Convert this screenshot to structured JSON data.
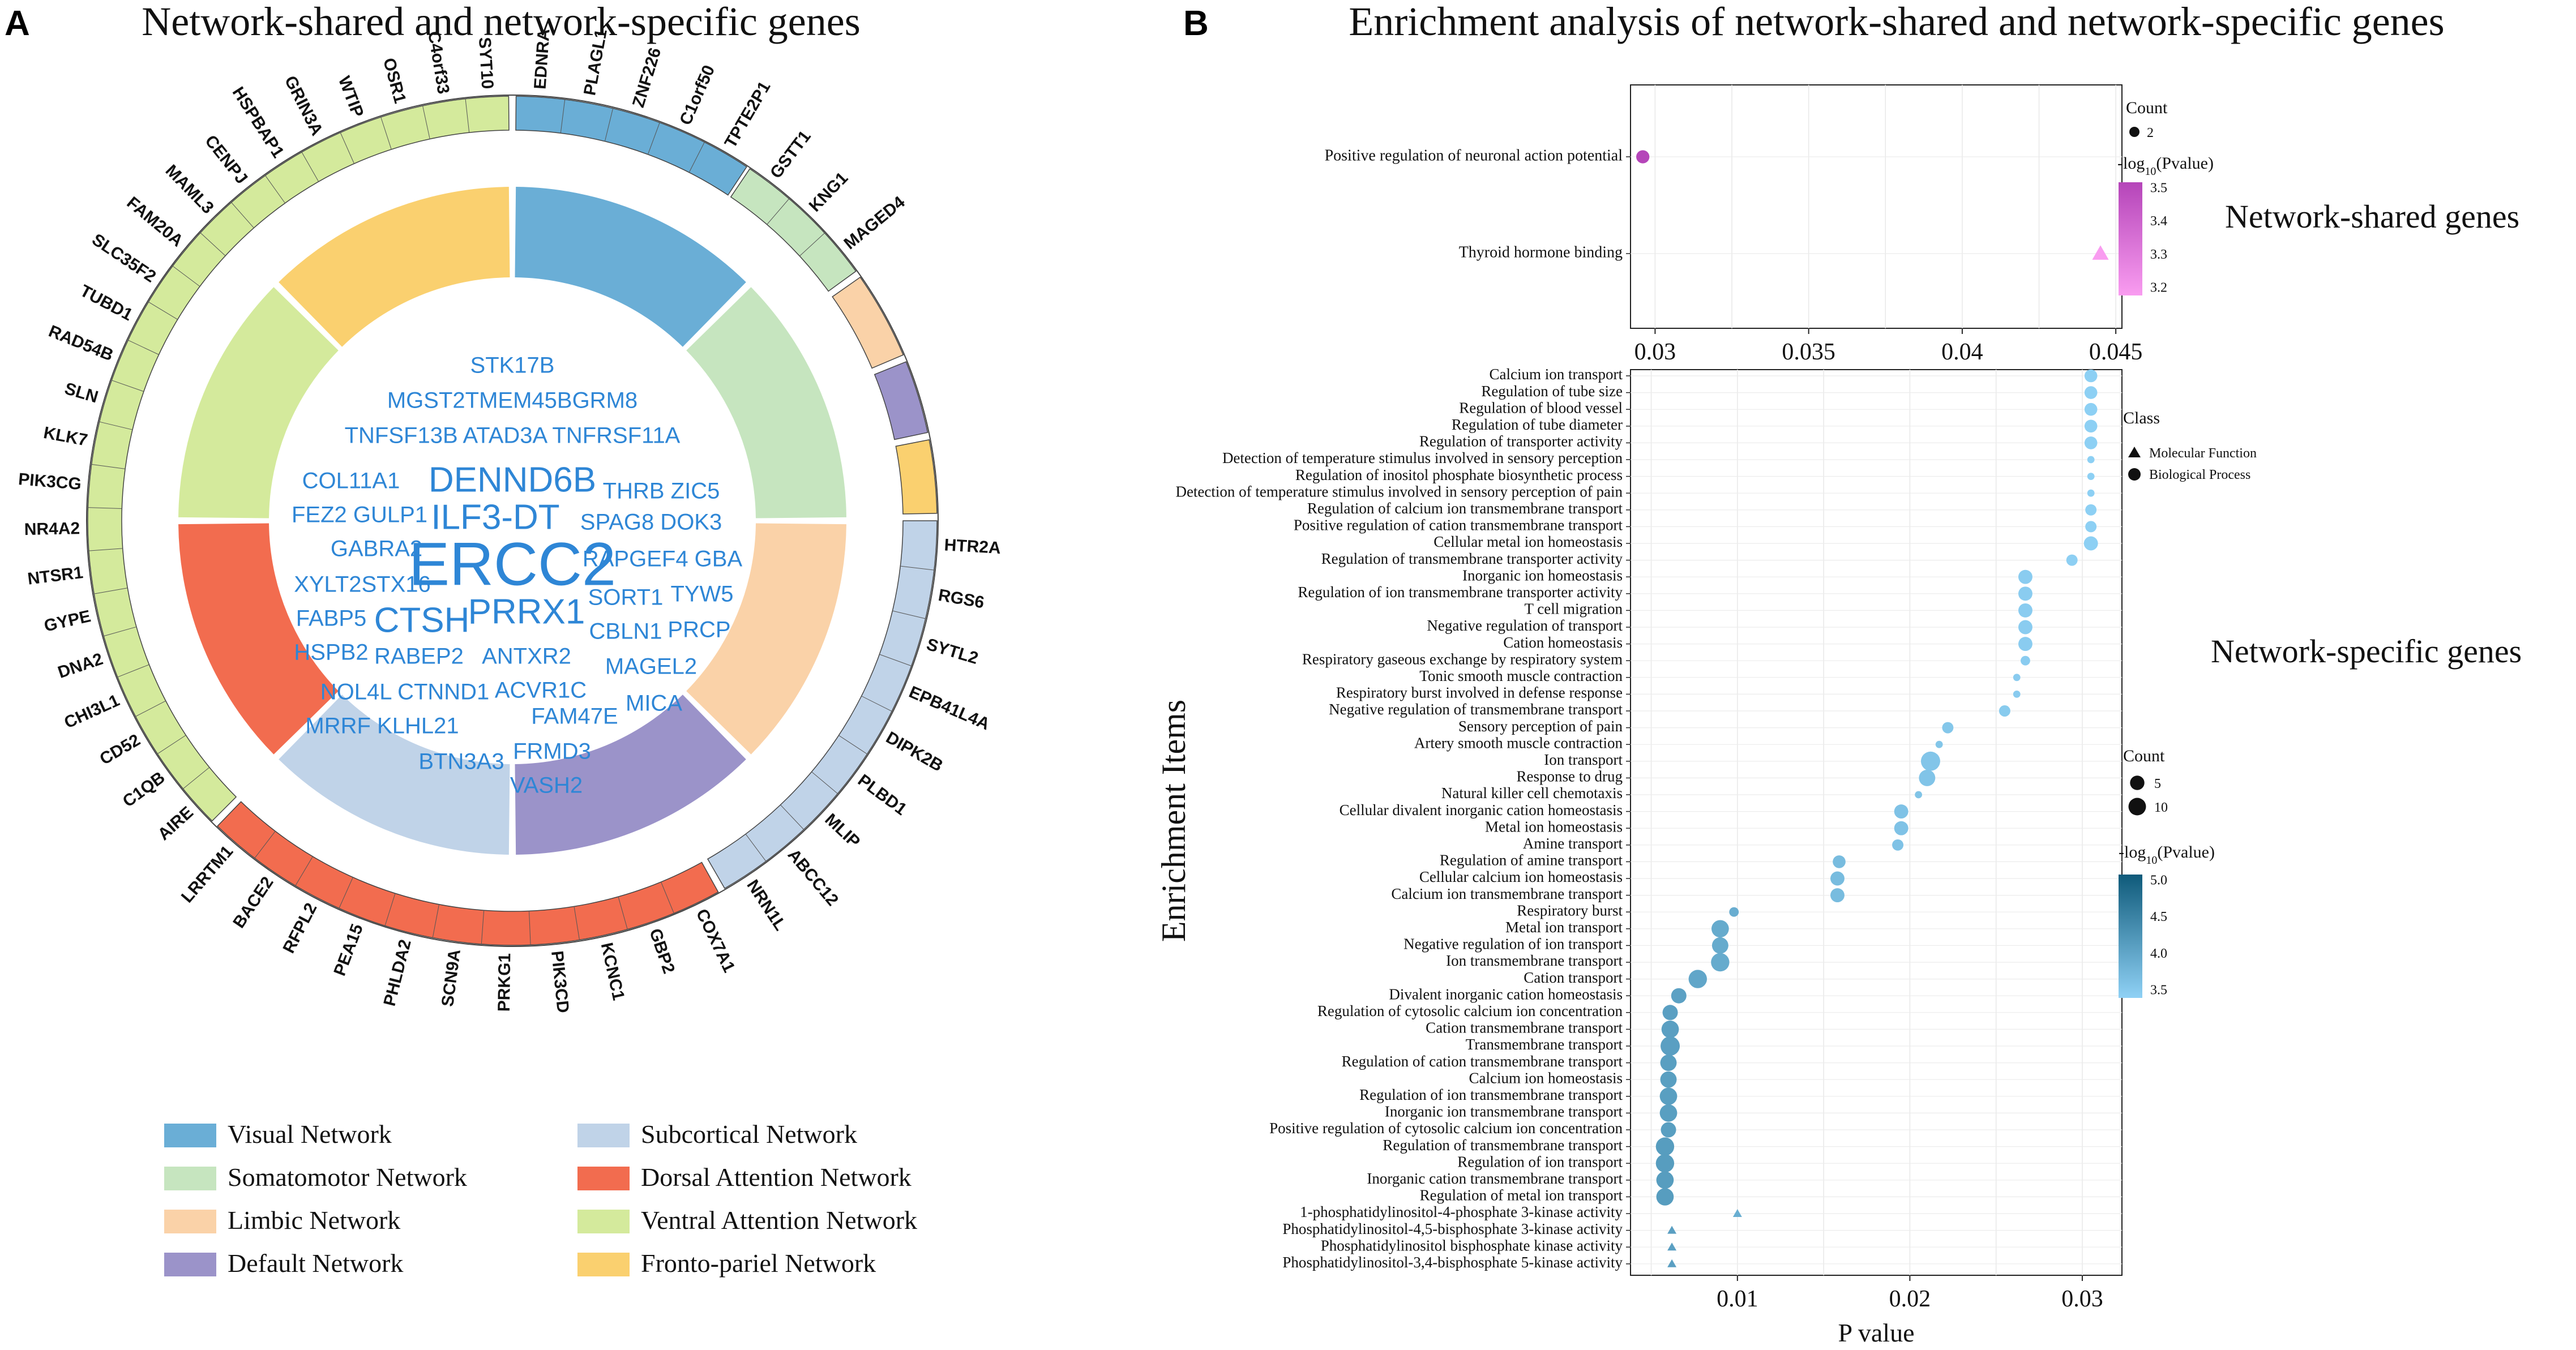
{
  "panel_a": {
    "letter": "A",
    "title": "Network-shared and network-specific genes",
    "segments": [
      {
        "network": "Visual Network",
        "color": "#6aaed6",
        "genes": [
          "EDNRA",
          "PLAGL1",
          "ZNF226",
          "C1orf50",
          "TPTE2P1"
        ]
      },
      {
        "network": "Somatomotor Network",
        "color": "#c6e5bf",
        "genes": [
          "GSTT1",
          "KNG1",
          "MAGED4"
        ]
      },
      {
        "network": "Limbic Network",
        "color": "#fad2a8",
        "genes": []
      },
      {
        "network": "Default Network",
        "color": "#9b93c9",
        "genes": []
      },
      {
        "network": "Fronto-pariel Network",
        "color": "#fad06f",
        "genes": []
      },
      {
        "network": "Subcortical Network",
        "color": "#c0d3e8",
        "genes": [
          "HTR2A",
          "RGS6",
          "SYTL2",
          "EPB41L4A",
          "DIPK2B",
          "PLBD1",
          "MLIP",
          "ABCC12",
          "NRN1L"
        ]
      },
      {
        "network": "Dorsal Attention Network",
        "color": "#f26c4f",
        "genes": [
          "COX7A1",
          "GBP2",
          "KCNC1",
          "PIK3CD",
          "PRKG1",
          "SCN9A",
          "PHLDA2",
          "PEA15",
          "RFPL2",
          "BACE2",
          "LRRTM1"
        ]
      },
      {
        "network": "Ventral Attention Network",
        "color": "#d4ea9c",
        "genes": [
          "AIRE",
          "C1QB",
          "CD52",
          "CHI3L1",
          "DNA2",
          "GYPE",
          "NTSR1",
          "NR4A2",
          "PIK3CG",
          "KLK7",
          "SLN",
          "RAD54B",
          "TUBD1",
          "SLC35F2",
          "FAM20A",
          "MAML3",
          "CENPJ",
          "HSPBAP1",
          "GRIN3A",
          "WTIP",
          "OSR1",
          "C4orf33",
          "SYT10"
        ]
      }
    ],
    "inner_ring": [
      {
        "network": "Visual Network",
        "color": "#6aaed6"
      },
      {
        "network": "Somatomotor Network",
        "color": "#c6e5bf"
      },
      {
        "network": "Limbic Network",
        "color": "#fad2a8"
      },
      {
        "network": "Default Network",
        "color": "#9b93c9"
      },
      {
        "network": "Subcortical Network",
        "color": "#c0d3e8"
      },
      {
        "network": "Dorsal Attention Network",
        "color": "#f26c4f"
      },
      {
        "network": "Ventral Attention Network",
        "color": "#d4ea9c"
      },
      {
        "network": "Fronto-pariel Network",
        "color": "#fad06f"
      }
    ],
    "word_cloud": [
      {
        "text": "STK17B",
        "size": 3
      },
      {
        "text": "MGST2TMEM45BGRM8",
        "size": 3
      },
      {
        "text": "TNFSF13B ATAD3A TNFRSF11A",
        "size": 3
      },
      {
        "text": "COL11A1",
        "size": 3
      },
      {
        "text": "DENND6B",
        "size": 5
      },
      {
        "text": "THRB ZIC5",
        "size": 3
      },
      {
        "text": "FEZ2 GULP1",
        "size": 3
      },
      {
        "text": "ILF3-DT",
        "size": 5
      },
      {
        "text": "SPAG8 DOK3",
        "size": 3
      },
      {
        "text": "GABRA2",
        "size": 3
      },
      {
        "text": "ERCC2",
        "size": 8
      },
      {
        "text": "RAPGEF4 GBA",
        "size": 3
      },
      {
        "text": "XYLT2STX16",
        "size": 3
      },
      {
        "text": "SORT1",
        "size": 3
      },
      {
        "text": "TYW5",
        "size": 3
      },
      {
        "text": "FABP5",
        "size": 3
      },
      {
        "text": "CTSH",
        "size": 5
      },
      {
        "text": "PRRX1",
        "size": 5
      },
      {
        "text": "CBLN1",
        "size": 3
      },
      {
        "text": "PRCP",
        "size": 3
      },
      {
        "text": "HSPB2",
        "size": 3
      },
      {
        "text": "RABEP2",
        "size": 3
      },
      {
        "text": "ANTXR2",
        "size": 3
      },
      {
        "text": "MAGEL2",
        "size": 3
      },
      {
        "text": "NOL4L CTNND1",
        "size": 3
      },
      {
        "text": "ACVR1C",
        "size": 3
      },
      {
        "text": "MICA",
        "size": 3
      },
      {
        "text": "FAM47E",
        "size": 3
      },
      {
        "text": "MRRF KLHL21",
        "size": 3
      },
      {
        "text": "FRMD3",
        "size": 3
      },
      {
        "text": "BTN3A3",
        "size": 3
      },
      {
        "text": "VASH2",
        "size": 3
      }
    ],
    "legend": [
      {
        "label": "Visual Network",
        "color": "#6aaed6"
      },
      {
        "label": "Subcortical Network",
        "color": "#c0d3e8"
      },
      {
        "label": "Somatomotor Network",
        "color": "#c6e5bf"
      },
      {
        "label": "Dorsal Attention Network",
        "color": "#f26c4f"
      },
      {
        "label": "Limbic Network",
        "color": "#fad2a8"
      },
      {
        "label": "Ventral Attention Network",
        "color": "#d4ea9c"
      },
      {
        "label": "Default Network",
        "color": "#9b93c9"
      },
      {
        "label": "Fronto-pariel Network",
        "color": "#fad06f"
      }
    ]
  },
  "panel_b": {
    "letter": "B",
    "title": "Enrichment analysis of network-shared and network-specific genes",
    "shared_label": "Network-shared genes",
    "specific_label": "Network-specific genes"
  },
  "chart_data": [
    {
      "type": "scatter",
      "title": "Network-shared genes",
      "xlabel": "",
      "ylabel": "",
      "xlim": [
        0.0292,
        0.0452
      ],
      "xticks": [
        0.03,
        0.035,
        0.04,
        0.045
      ],
      "xtick_labels": [
        "0.03",
        "0.035",
        "0.04",
        "0.045"
      ],
      "items": [
        {
          "term": "Positive regulation of neuronal action potential",
          "p": 0.0296,
          "count": 2,
          "log10p": 3.53,
          "class": "Biological Process"
        },
        {
          "term": "Thyroid hormone binding",
          "p": 0.0445,
          "count": 2,
          "log10p": 3.15,
          "class": "Molecular Function"
        }
      ],
      "legend": {
        "count_title": "Count",
        "count_values": [
          2
        ],
        "color_title": "-log10(Pvalue)",
        "color_ticks": [
          "3.5",
          "3.4",
          "3.3",
          "3.2"
        ],
        "color_low": "#f99cf0",
        "color_high": "#b545b9"
      }
    },
    {
      "type": "scatter",
      "title": "Network-specific genes",
      "xlabel": "P value",
      "ylabel": "Enrichment Items",
      "xlim": [
        0.0038,
        0.0323
      ],
      "xticks": [
        0.01,
        0.02,
        0.03
      ],
      "xtick_labels": [
        "0.01",
        "0.02",
        "0.03"
      ],
      "items": [
        {
          "term": "Calcium ion transport",
          "p": 0.0305,
          "count": 4,
          "log10p": 3.52,
          "class": "Biological Process"
        },
        {
          "term": "Regulation of tube size",
          "p": 0.0305,
          "count": 4,
          "log10p": 3.52,
          "class": "Biological Process"
        },
        {
          "term": "Regulation of blood vessel",
          "p": 0.0305,
          "count": 4,
          "log10p": 3.52,
          "class": "Biological Process"
        },
        {
          "term": "Regulation of tube diameter",
          "p": 0.0305,
          "count": 4,
          "log10p": 3.52,
          "class": "Biological Process"
        },
        {
          "term": "Regulation of transporter activity",
          "p": 0.0305,
          "count": 4,
          "log10p": 3.52,
          "class": "Biological Process"
        },
        {
          "term": "Detection of temperature stimulus involved in sensory perception",
          "p": 0.0305,
          "count": 1,
          "log10p": 3.52,
          "class": "Biological Process"
        },
        {
          "term": "Regulation of inositol phosphate biosynthetic process",
          "p": 0.0305,
          "count": 1,
          "log10p": 3.52,
          "class": "Biological Process"
        },
        {
          "term": "Detection of temperature stimulus involved in sensory perception of pain",
          "p": 0.0305,
          "count": 1,
          "log10p": 3.52,
          "class": "Biological Process"
        },
        {
          "term": "Regulation of calcium ion transmembrane transport",
          "p": 0.0305,
          "count": 3,
          "log10p": 3.52,
          "class": "Biological Process"
        },
        {
          "term": "Positive regulation of cation transmembrane transport",
          "p": 0.0305,
          "count": 3,
          "log10p": 3.52,
          "class": "Biological Process"
        },
        {
          "term": "Cellular metal ion homeostasis",
          "p": 0.0305,
          "count": 5,
          "log10p": 3.52,
          "class": "Biological Process"
        },
        {
          "term": "Regulation of transmembrane transporter activity",
          "p": 0.0294,
          "count": 3,
          "log10p": 3.53,
          "class": "Biological Process"
        },
        {
          "term": "Inorganic ion homeostasis",
          "p": 0.0267,
          "count": 5,
          "log10p": 3.57,
          "class": "Biological Process"
        },
        {
          "term": "Regulation of ion transmembrane transporter activity",
          "p": 0.0267,
          "count": 5,
          "log10p": 3.57,
          "class": "Biological Process"
        },
        {
          "term": "T cell migration",
          "p": 0.0267,
          "count": 5,
          "log10p": 3.57,
          "class": "Biological Process"
        },
        {
          "term": "Negative regulation of transport",
          "p": 0.0267,
          "count": 5,
          "log10p": 3.57,
          "class": "Biological Process"
        },
        {
          "term": "Cation homeostasis",
          "p": 0.0267,
          "count": 5,
          "log10p": 3.57,
          "class": "Biological Process"
        },
        {
          "term": "Respiratory gaseous exchange by respiratory system",
          "p": 0.0267,
          "count": 2,
          "log10p": 3.57,
          "class": "Biological Process"
        },
        {
          "term": "Tonic smooth muscle contraction",
          "p": 0.0262,
          "count": 1,
          "log10p": 3.58,
          "class": "Biological Process"
        },
        {
          "term": "Respiratory burst involved in defense response",
          "p": 0.0262,
          "count": 1,
          "log10p": 3.58,
          "class": "Biological Process"
        },
        {
          "term": "Negative regulation of transmembrane transport",
          "p": 0.0255,
          "count": 3,
          "log10p": 3.59,
          "class": "Biological Process"
        },
        {
          "term": "Sensory perception of pain",
          "p": 0.0222,
          "count": 3,
          "log10p": 3.65,
          "class": "Biological Process"
        },
        {
          "term": "Artery smooth muscle contraction",
          "p": 0.0217,
          "count": 1,
          "log10p": 3.66,
          "class": "Biological Process"
        },
        {
          "term": "Ion transport",
          "p": 0.0212,
          "count": 10,
          "log10p": 3.67,
          "class": "Biological Process"
        },
        {
          "term": "Response to drug",
          "p": 0.021,
          "count": 7,
          "log10p": 3.68,
          "class": "Biological Process"
        },
        {
          "term": "Natural killer cell chemotaxis",
          "p": 0.0205,
          "count": 1,
          "log10p": 3.69,
          "class": "Biological Process"
        },
        {
          "term": "Cellular divalent inorganic cation homeostasis",
          "p": 0.0195,
          "count": 5,
          "log10p": 3.71,
          "class": "Biological Process"
        },
        {
          "term": "Metal ion homeostasis",
          "p": 0.0195,
          "count": 5,
          "log10p": 3.71,
          "class": "Biological Process"
        },
        {
          "term": "Amine transport",
          "p": 0.0193,
          "count": 3,
          "log10p": 3.71,
          "class": "Biological Process"
        },
        {
          "term": "Regulation of amine transport",
          "p": 0.0159,
          "count": 4,
          "log10p": 3.8,
          "class": "Biological Process"
        },
        {
          "term": "Cellular calcium ion homeostasis",
          "p": 0.0158,
          "count": 5,
          "log10p": 3.8,
          "class": "Biological Process"
        },
        {
          "term": "Calcium ion transmembrane transport",
          "p": 0.0158,
          "count": 5,
          "log10p": 3.8,
          "class": "Biological Process"
        },
        {
          "term": "Respiratory burst",
          "p": 0.0098,
          "count": 2,
          "log10p": 4.01,
          "class": "Biological Process"
        },
        {
          "term": "Metal ion transport",
          "p": 0.009,
          "count": 8,
          "log10p": 4.05,
          "class": "Biological Process"
        },
        {
          "term": "Negative regulation of ion transport",
          "p": 0.009,
          "count": 7,
          "log10p": 4.05,
          "class": "Biological Process"
        },
        {
          "term": "Ion transmembrane transport",
          "p": 0.009,
          "count": 9,
          "log10p": 4.05,
          "class": "Biological Process"
        },
        {
          "term": "Cation transport",
          "p": 0.0077,
          "count": 9,
          "log10p": 4.11,
          "class": "Biological Process"
        },
        {
          "term": "Divalent inorganic cation homeostasis",
          "p": 0.0066,
          "count": 6,
          "log10p": 4.18,
          "class": "Biological Process"
        },
        {
          "term": "Regulation of cytosolic calcium ion concentration",
          "p": 0.0061,
          "count": 6,
          "log10p": 4.21,
          "class": "Biological Process"
        },
        {
          "term": "Cation transmembrane transport",
          "p": 0.0061,
          "count": 8,
          "log10p": 4.21,
          "class": "Biological Process"
        },
        {
          "term": "Transmembrane transport",
          "p": 0.0061,
          "count": 10,
          "log10p": 4.21,
          "class": "Biological Process"
        },
        {
          "term": "Regulation of cation transmembrane transport",
          "p": 0.006,
          "count": 7,
          "log10p": 4.22,
          "class": "Biological Process"
        },
        {
          "term": "Calcium ion homeostasis",
          "p": 0.006,
          "count": 7,
          "log10p": 4.22,
          "class": "Biological Process"
        },
        {
          "term": "Regulation of ion transmembrane transport",
          "p": 0.006,
          "count": 8,
          "log10p": 4.22,
          "class": "Biological Process"
        },
        {
          "term": "Inorganic ion transmembrane transport",
          "p": 0.006,
          "count": 8,
          "log10p": 4.22,
          "class": "Biological Process"
        },
        {
          "term": "Positive regulation of cytosolic calcium ion concentration",
          "p": 0.006,
          "count": 6,
          "log10p": 4.22,
          "class": "Biological Process"
        },
        {
          "term": "Regulation of transmembrane transport",
          "p": 0.0058,
          "count": 9,
          "log10p": 4.24,
          "class": "Biological Process"
        },
        {
          "term": "Regulation of ion transport",
          "p": 0.0058,
          "count": 9,
          "log10p": 4.24,
          "class": "Biological Process"
        },
        {
          "term": "Inorganic cation transmembrane transport",
          "p": 0.0058,
          "count": 8,
          "log10p": 4.24,
          "class": "Biological Process"
        },
        {
          "term": "Regulation of metal ion transport",
          "p": 0.0058,
          "count": 8,
          "log10p": 4.24,
          "class": "Biological Process"
        },
        {
          "term": "1-phosphatidylinositol-4-phosphate 3-kinase activity",
          "p": 0.01,
          "count": 1,
          "log10p": 4.0,
          "class": "Molecular Function"
        },
        {
          "term": "Phosphatidylinositol-4,5-bisphosphate 3-kinase activity",
          "p": 0.0062,
          "count": 1,
          "log10p": 4.21,
          "class": "Molecular Function"
        },
        {
          "term": "Phosphatidylinositol bisphosphate kinase activity",
          "p": 0.0062,
          "count": 1,
          "log10p": 4.21,
          "class": "Molecular Function"
        },
        {
          "term": "Phosphatidylinositol-3,4-bisphosphate 5-kinase activity",
          "p": 0.0062,
          "count": 1,
          "log10p": 4.21,
          "class": "Molecular Function"
        }
      ],
      "legend": {
        "class_title": "Class",
        "class_values": [
          "Molecular Function",
          "Biological Process"
        ],
        "count_title": "Count",
        "count_values": [
          5,
          10
        ],
        "color_title": "-log10(Pvalue)",
        "color_ticks": [
          "5.0",
          "4.5",
          "4.0",
          "3.5"
        ],
        "color_low": "#8fd1f5",
        "color_high": "#0f5a7a"
      }
    }
  ]
}
